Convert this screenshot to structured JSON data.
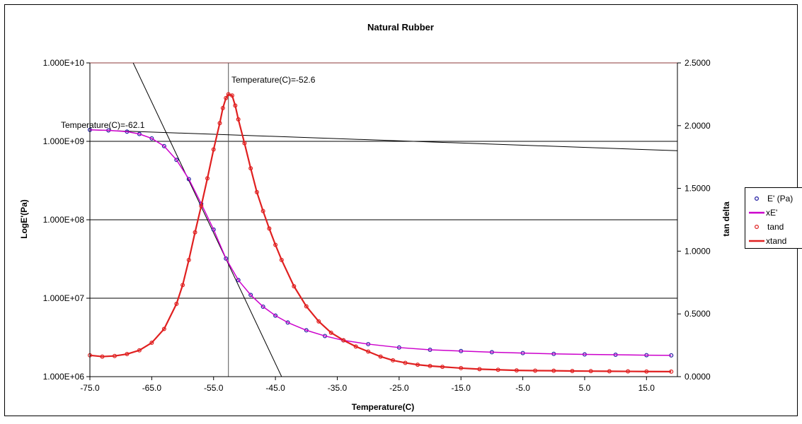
{
  "chart_data": {
    "type": "scatter",
    "title": "Natural Rubber",
    "xlabel": "Temperature(C)",
    "ylabel_left": "LogE'(Pa)",
    "ylabel_right": "tan delta",
    "xlim": [
      -75,
      20
    ],
    "x_ticks": [
      -75,
      -65,
      -55,
      -45,
      -35,
      -25,
      -15,
      -5,
      5,
      15
    ],
    "x_tick_labels": [
      "-75.0",
      "-65.0",
      "-55.0",
      "-45.0",
      "-35.0",
      "-25.0",
      "-15.0",
      "-5.0",
      "5.0",
      "15.0"
    ],
    "y_left_scale": "log",
    "y_left_lim": [
      1000000,
      10000000000
    ],
    "y_left_ticks": [
      1000000,
      10000000,
      100000000,
      1000000000,
      10000000000
    ],
    "y_left_tick_labels": [
      "1.000E+06",
      "1.000E+07",
      "1.000E+08",
      "1.000E+09",
      "1.000E+10"
    ],
    "y_right_lim": [
      0,
      2.5
    ],
    "y_right_ticks": [
      0,
      0.5,
      1.0,
      1.5,
      2.0,
      2.5
    ],
    "y_right_tick_labels": [
      "0.0000",
      "0.5000",
      "1.0000",
      "1.5000",
      "2.0000",
      "2.5000"
    ],
    "grid": "horizontal",
    "legend_position": "right",
    "series": [
      {
        "name": "E' (Pa)",
        "axis": "left",
        "style": "markers",
        "color": "#1f1aa0",
        "x": [
          -75,
          -72,
          -69,
          -67,
          -65,
          -63,
          -61,
          -59,
          -57,
          -55,
          -53,
          -51,
          -49,
          -47,
          -45,
          -43,
          -40,
          -37,
          -34,
          -30,
          -25,
          -20,
          -15,
          -10,
          -5,
          0,
          5,
          10,
          15,
          19
        ],
        "y": [
          1400000000,
          1380000000,
          1330000000,
          1240000000,
          1090000000,
          870000000,
          580000000,
          330000000,
          160000000,
          75000000,
          32000000,
          17000000,
          11000000,
          7800000,
          6000000,
          4900000,
          3900000,
          3300000,
          2900000,
          2600000,
          2350000,
          2200000,
          2120000,
          2050000,
          2000000,
          1950000,
          1920000,
          1900000,
          1880000,
          1870000
        ]
      },
      {
        "name": "xE'",
        "axis": "left",
        "style": "line",
        "color": "#cc00cc",
        "x": [
          -75,
          -72,
          -69,
          -67,
          -65,
          -63,
          -61,
          -59,
          -57,
          -55,
          -53,
          -51,
          -49,
          -47,
          -45,
          -43,
          -40,
          -37,
          -34,
          -30,
          -25,
          -20,
          -15,
          -10,
          -5,
          0,
          5,
          10,
          15,
          19
        ],
        "y": [
          1400000000,
          1380000000,
          1330000000,
          1240000000,
          1090000000,
          870000000,
          580000000,
          330000000,
          160000000,
          75000000,
          32000000,
          17000000,
          11000000,
          7800000,
          6000000,
          4900000,
          3900000,
          3300000,
          2900000,
          2600000,
          2350000,
          2200000,
          2120000,
          2050000,
          2000000,
          1950000,
          1920000,
          1900000,
          1880000,
          1870000
        ]
      },
      {
        "name": "tand",
        "axis": "right",
        "style": "markers",
        "color": "#e02020",
        "x": [
          -75,
          -73,
          -71,
          -69,
          -67,
          -65,
          -63,
          -61,
          -60,
          -59,
          -58,
          -57,
          -56,
          -55,
          -54,
          -53.5,
          -53,
          -52.6,
          -52,
          -51.5,
          -51,
          -50,
          -49,
          -48,
          -47,
          -46,
          -45,
          -44,
          -42,
          -40,
          -38,
          -36,
          -34,
          -32,
          -30,
          -28,
          -26,
          -24,
          -22,
          -20,
          -18,
          -15,
          -12,
          -9,
          -6,
          -3,
          0,
          3,
          6,
          9,
          12,
          15,
          19
        ],
        "y": [
          0.17,
          0.16,
          0.165,
          0.18,
          0.21,
          0.27,
          0.38,
          0.58,
          0.73,
          0.93,
          1.15,
          1.36,
          1.58,
          1.81,
          2.02,
          2.14,
          2.22,
          2.25,
          2.24,
          2.16,
          2.05,
          1.86,
          1.66,
          1.47,
          1.32,
          1.18,
          1.05,
          0.93,
          0.72,
          0.56,
          0.44,
          0.35,
          0.29,
          0.24,
          0.2,
          0.16,
          0.13,
          0.11,
          0.095,
          0.085,
          0.078,
          0.068,
          0.06,
          0.055,
          0.05,
          0.048,
          0.047,
          0.045,
          0.044,
          0.043,
          0.042,
          0.041,
          0.04
        ]
      },
      {
        "name": "xtand",
        "axis": "right",
        "style": "line",
        "color": "#e02020",
        "x": [
          -75,
          -73,
          -71,
          -69,
          -67,
          -65,
          -63,
          -61,
          -60,
          -59,
          -58,
          -57,
          -56,
          -55,
          -54,
          -53.5,
          -53,
          -52.6,
          -52,
          -51.5,
          -51,
          -50,
          -49,
          -48,
          -47,
          -46,
          -45,
          -44,
          -42,
          -40,
          -38,
          -36,
          -34,
          -32,
          -30,
          -28,
          -26,
          -24,
          -22,
          -20,
          -18,
          -15,
          -12,
          -9,
          -6,
          -3,
          0,
          3,
          6,
          9,
          12,
          15,
          19
        ],
        "y": [
          0.17,
          0.16,
          0.165,
          0.18,
          0.21,
          0.27,
          0.38,
          0.58,
          0.73,
          0.93,
          1.15,
          1.36,
          1.58,
          1.81,
          2.02,
          2.14,
          2.22,
          2.25,
          2.24,
          2.16,
          2.05,
          1.86,
          1.66,
          1.47,
          1.32,
          1.18,
          1.05,
          0.93,
          0.72,
          0.56,
          0.44,
          0.35,
          0.29,
          0.24,
          0.2,
          0.16,
          0.13,
          0.11,
          0.095,
          0.085,
          0.078,
          0.068,
          0.06,
          0.055,
          0.05,
          0.048,
          0.047,
          0.045,
          0.044,
          0.043,
          0.042,
          0.041,
          0.04
        ]
      }
    ],
    "reference_lines": [
      {
        "type": "vertical",
        "x": -52.6,
        "color": "#555555"
      },
      {
        "type": "segment",
        "axis": "left",
        "x1": -75,
        "y1": 1400000000,
        "x2": 20,
        "y2": 760000000,
        "color": "#000000"
      },
      {
        "type": "segment",
        "axis": "left",
        "x1": -68,
        "y1": 10000000000,
        "x2": -44,
        "y2": 1000000,
        "color": "#000000"
      }
    ],
    "annotations": [
      {
        "text": "Temperature(C)=-52.6"
      },
      {
        "text": "Temperature(C)=-62.1"
      }
    ]
  }
}
